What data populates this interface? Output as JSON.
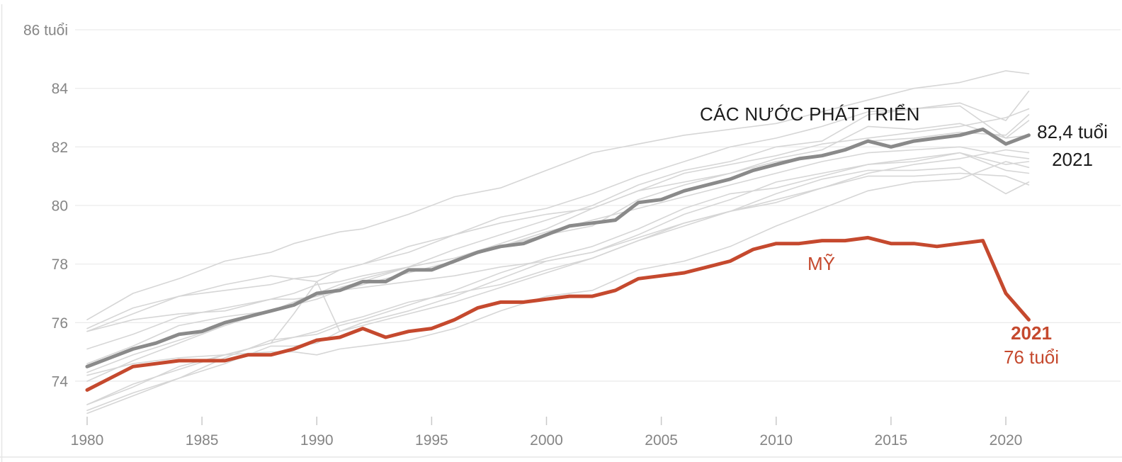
{
  "colors": {
    "us_line": "#c5492e",
    "developed_line": "#8a8a8a",
    "background_lines": "#d6d6d6",
    "gridline": "#ececec",
    "tick": "#c9c9c9",
    "axis_text": "#858585",
    "annotation_dark": "#1c1c1c",
    "divider": "#e6e6e6"
  },
  "chart_data": {
    "type": "line",
    "y_axis_unit": "tuổi",
    "y_ticks": [
      {
        "value": 86,
        "label": "86 tuổi"
      },
      {
        "value": 84,
        "label": "84"
      },
      {
        "value": 82,
        "label": "82"
      },
      {
        "value": 80,
        "label": "80"
      },
      {
        "value": 78,
        "label": "78"
      },
      {
        "value": 76,
        "label": "76"
      },
      {
        "value": 74,
        "label": "74"
      }
    ],
    "x_ticks": [
      "1980",
      "1985",
      "1990",
      "1995",
      "2000",
      "2005",
      "2010",
      "2015",
      "2020"
    ],
    "x_range": [
      1980,
      2021
    ],
    "y_range": [
      72.8,
      86
    ],
    "series": [
      {
        "id": "developed",
        "name": "CÁC NƯỚC PHÁT TRIỂN",
        "end_value_label": "82,4 tuổi",
        "end_year_label": "2021",
        "start_year": 1980,
        "values": [
          74.5,
          74.8,
          75.1,
          75.3,
          75.6,
          75.7,
          76.0,
          76.2,
          76.4,
          76.6,
          77.0,
          77.1,
          77.4,
          77.4,
          77.8,
          77.8,
          78.1,
          78.4,
          78.6,
          78.7,
          79.0,
          79.3,
          79.4,
          79.5,
          80.1,
          80.2,
          80.5,
          80.7,
          80.9,
          81.2,
          81.4,
          81.6,
          81.7,
          81.9,
          82.2,
          82.0,
          82.2,
          82.3,
          82.4,
          82.6,
          82.1,
          82.4
        ]
      },
      {
        "id": "us",
        "name": "MỸ",
        "end_value_label": "76 tuổi",
        "end_year_label": "2021",
        "start_year": 1980,
        "values": [
          73.7,
          74.1,
          74.5,
          74.6,
          74.7,
          74.7,
          74.7,
          74.9,
          74.9,
          75.1,
          75.4,
          75.5,
          75.8,
          75.5,
          75.7,
          75.8,
          76.1,
          76.5,
          76.7,
          76.7,
          76.8,
          76.9,
          76.9,
          77.1,
          77.5,
          77.6,
          77.7,
          77.9,
          78.1,
          78.5,
          78.7,
          78.7,
          78.8,
          78.8,
          78.9,
          78.7,
          78.7,
          78.6,
          78.7,
          78.8,
          77.0,
          76.1
        ]
      }
    ],
    "background_series": {
      "description": "unlabeled individual developed-country lines",
      "years": [
        1980,
        1982,
        1984,
        1986,
        1988,
        1989,
        1990,
        1991,
        1992,
        1994,
        1996,
        1998,
        2000,
        2002,
        2004,
        2006,
        2008,
        2010,
        2012,
        2014,
        2016,
        2018,
        2020,
        2021
      ],
      "lines": [
        [
          76.1,
          77.0,
          77.5,
          78.1,
          78.4,
          78.7,
          78.9,
          79.1,
          79.2,
          79.7,
          80.3,
          80.6,
          81.2,
          81.8,
          82.1,
          82.4,
          82.6,
          82.8,
          83.2,
          83.6,
          84.0,
          84.2,
          84.6,
          84.5
        ],
        [
          75.7,
          76.3,
          76.9,
          77.3,
          77.6,
          77.5,
          77.4,
          77.8,
          78.0,
          78.4,
          79.0,
          79.6,
          79.9,
          80.4,
          81.0,
          81.5,
          82.0,
          82.3,
          82.7,
          83.2,
          83.3,
          83.5,
          82.9,
          83.9
        ],
        [
          75.8,
          76.5,
          76.9,
          77.1,
          77.3,
          77.5,
          77.6,
          77.8,
          78.0,
          78.6,
          79.0,
          79.4,
          79.7,
          79.9,
          80.5,
          80.8,
          81.1,
          81.5,
          81.7,
          82.2,
          82.3,
          82.5,
          82.4,
          83.1
        ],
        [
          74.6,
          75.2,
          75.9,
          76.2,
          76.4,
          76.7,
          77.0,
          77.3,
          77.5,
          77.9,
          78.2,
          78.7,
          79.2,
          79.9,
          80.5,
          81.1,
          81.4,
          81.7,
          82.1,
          82.3,
          82.5,
          82.7,
          83.0,
          83.3
        ],
        [
          74.3,
          74.9,
          75.4,
          75.9,
          76.4,
          76.6,
          76.8,
          77.1,
          77.3,
          77.7,
          78.1,
          78.6,
          79.0,
          79.3,
          80.2,
          80.7,
          81.1,
          81.6,
          81.9,
          82.7,
          82.6,
          82.8,
          82.3,
          82.4
        ],
        [
          74.0,
          74.7,
          75.3,
          75.9,
          76.4,
          76.7,
          76.9,
          77.2,
          77.4,
          77.9,
          78.5,
          79.0,
          79.5,
          80.0,
          80.7,
          81.2,
          81.5,
          82.0,
          82.2,
          83.1,
          83.3,
          83.4,
          82.3,
          82.9
        ],
        [
          75.1,
          75.6,
          76.2,
          76.5,
          76.8,
          77.0,
          77.3,
          77.4,
          77.6,
          77.9,
          78.2,
          78.6,
          79.1,
          79.5,
          79.9,
          80.3,
          80.7,
          81.1,
          81.5,
          81.8,
          81.9,
          82.0,
          81.7,
          81.6
        ],
        [
          75.7,
          76.1,
          76.3,
          76.4,
          76.8,
          76.8,
          76.9,
          77.1,
          77.2,
          77.4,
          77.6,
          77.9,
          78.1,
          78.4,
          79.0,
          79.7,
          80.2,
          80.8,
          81.1,
          81.4,
          81.5,
          81.8,
          81.4,
          81.5
        ],
        [
          73.2,
          73.8,
          74.5,
          74.9,
          75.3,
          75.5,
          75.7,
          76.0,
          76.2,
          76.7,
          77.0,
          77.3,
          77.8,
          78.2,
          78.8,
          79.4,
          79.8,
          80.4,
          80.9,
          81.2,
          81.2,
          81.3,
          80.4,
          80.8
        ],
        [
          72.9,
          73.5,
          74.1,
          74.6,
          75.2,
          75.2,
          75.3,
          75.7,
          76.0,
          76.4,
          76.9,
          77.5,
          78.1,
          78.4,
          78.9,
          79.4,
          79.8,
          80.2,
          80.6,
          81.0,
          81.0,
          81.1,
          81.0,
          80.7
        ],
        [
          73.0,
          73.6,
          74.1,
          74.8,
          75.4,
          75.5,
          75.6,
          75.9,
          76.1,
          76.6,
          77.1,
          77.7,
          78.2,
          78.6,
          79.2,
          79.9,
          80.4,
          80.6,
          81.0,
          81.4,
          81.6,
          81.8,
          81.2,
          81.1
        ],
        [
          74.2,
          74.6,
          74.8,
          74.9,
          75.0,
          75.0,
          74.9,
          75.1,
          75.2,
          75.4,
          75.8,
          76.4,
          76.9,
          77.1,
          77.8,
          78.1,
          78.6,
          79.3,
          79.9,
          80.5,
          80.8,
          80.9,
          81.5,
          81.3
        ],
        [
          73.2,
          73.9,
          74.4,
          74.9,
          75.3,
          76.3,
          77.4,
          75.7,
          75.9,
          76.3,
          76.7,
          77.2,
          77.7,
          78.2,
          78.8,
          79.3,
          79.8,
          80.1,
          80.6,
          81.1,
          81.4,
          81.6,
          81.9,
          81.8
        ]
      ]
    },
    "annotations": {
      "developed_label": "CÁC NƯỚC PHÁT TRIỂN",
      "developed_value": "82,4 tuổi",
      "developed_year": "2021",
      "us_label": "MỸ",
      "us_year": "2021",
      "us_value": "76 tuổi"
    }
  }
}
